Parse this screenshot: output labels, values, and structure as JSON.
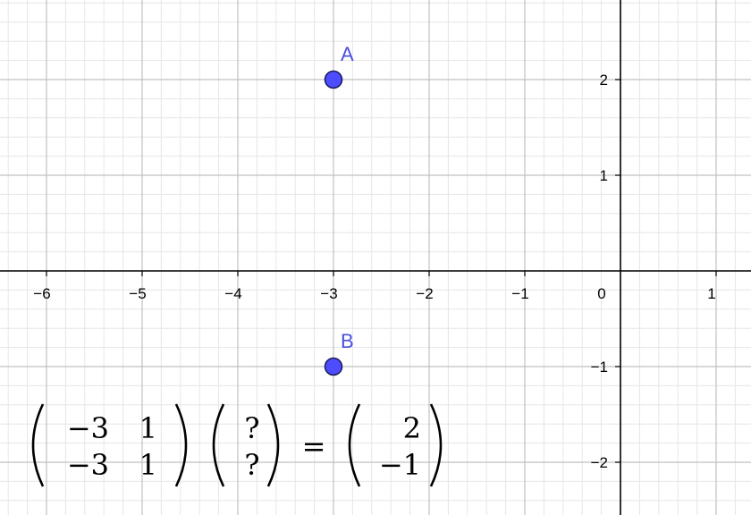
{
  "axes": {
    "x_ticks": [
      {
        "value": -6,
        "label": "−6"
      },
      {
        "value": -5,
        "label": "−5"
      },
      {
        "value": -4,
        "label": "−4"
      },
      {
        "value": -3,
        "label": "−3"
      },
      {
        "value": -2,
        "label": "−2"
      },
      {
        "value": -1,
        "label": "−1"
      },
      {
        "value": 0,
        "label": "0"
      },
      {
        "value": 1,
        "label": "1"
      }
    ],
    "y_ticks": [
      {
        "value": 2,
        "label": "2"
      },
      {
        "value": 1,
        "label": "1"
      },
      {
        "value": -1,
        "label": "−1"
      },
      {
        "value": -2,
        "label": "−2"
      }
    ],
    "xlim": [
      -6.5,
      1.35
    ],
    "ylim": [
      -2.55,
      2.85
    ],
    "grid": true,
    "minor_divisions": 5
  },
  "points": [
    {
      "name": "A",
      "x": -3,
      "y": 2
    },
    {
      "name": "B",
      "x": -3,
      "y": -1
    }
  ],
  "equation": {
    "matrix": [
      [
        "−3",
        "1"
      ],
      [
        "−3",
        "1"
      ]
    ],
    "unknown": [
      "?",
      "?"
    ],
    "equals": "=",
    "result": [
      "2",
      "−1"
    ]
  },
  "colors": {
    "point_fill": "#4d4dff",
    "point_label": "#4b4fdc",
    "major_grid": "#c0c0c0",
    "minor_grid": "#e6e6e6",
    "axis": "#000000"
  }
}
